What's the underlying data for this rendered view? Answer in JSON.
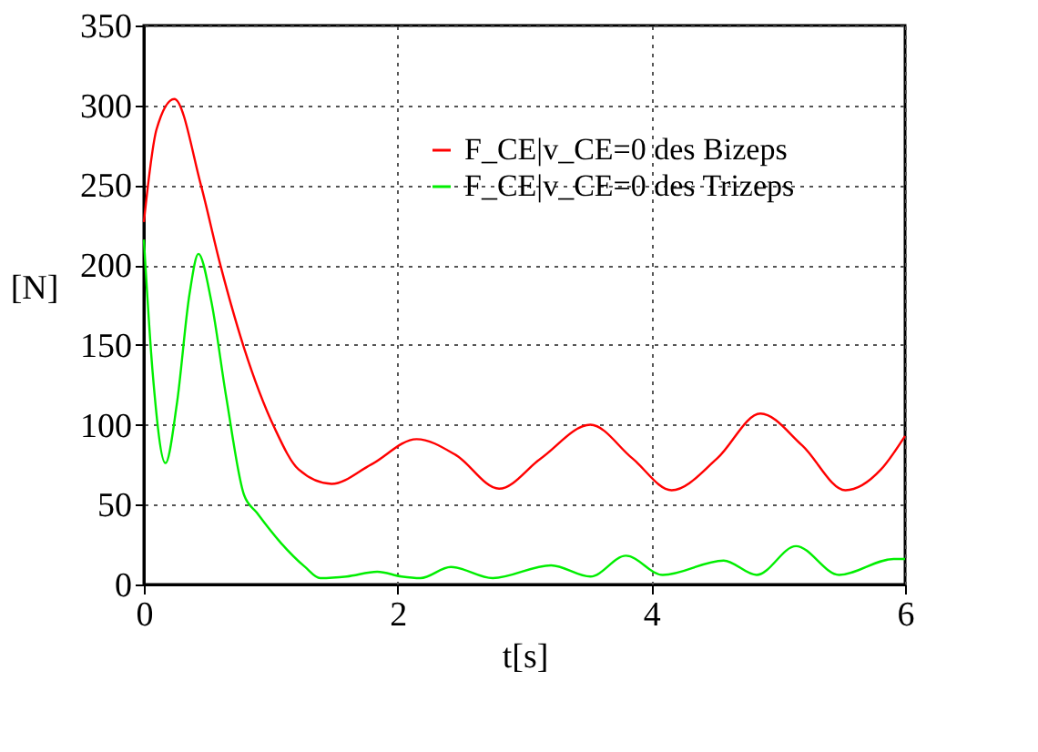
{
  "chart_data": {
    "type": "line",
    "xlabel": "t[s]",
    "ylabel": "[N]",
    "xlim": [
      0,
      6
    ],
    "xticks": [
      0,
      2,
      4,
      6
    ],
    "ylim": [
      0,
      350
    ],
    "yticks": [
      0,
      50,
      100,
      150,
      200,
      250,
      300,
      350
    ],
    "grid": true,
    "legend": "top right",
    "line_style": "solid",
    "marker": "none",
    "series": [
      {
        "name": "F_CE|v_CE=0 des Bizeps",
        "color": "#ff0000",
        "x": [
          0,
          0.1,
          0.24,
          0.45,
          0.6,
          0.79,
          1.03,
          1.22,
          1.48,
          1.79,
          2.15,
          2.46,
          2.8,
          3.13,
          3.52,
          3.85,
          4.16,
          4.52,
          4.86,
          5.19,
          5.53,
          5.81,
          6.0
        ],
        "values": [
          227,
          285,
          304,
          250,
          201,
          148,
          98,
          72,
          63,
          75,
          91,
          81,
          60,
          79,
          100,
          79,
          59,
          79,
          107,
          87,
          59,
          72,
          93
        ]
      },
      {
        "name": "F_CE|v_CE=0 des Trizeps",
        "color": "#00ee00",
        "x": [
          0,
          0.07,
          0.17,
          0.26,
          0.36,
          0.43,
          0.53,
          0.65,
          0.79,
          0.89,
          1.08,
          1.27,
          1.39,
          1.6,
          1.84,
          2.03,
          2.18,
          2.42,
          2.75,
          3.21,
          3.52,
          3.8,
          4.09,
          4.57,
          4.83,
          5.14,
          5.48,
          5.91,
          6.0
        ],
        "values": [
          216,
          132,
          76,
          113,
          182,
          207,
          178,
          117,
          56,
          45,
          26,
          11,
          4,
          5,
          8,
          5,
          4,
          11,
          4,
          12,
          5,
          18,
          6,
          15,
          6,
          24,
          6,
          16,
          16
        ]
      }
    ]
  }
}
